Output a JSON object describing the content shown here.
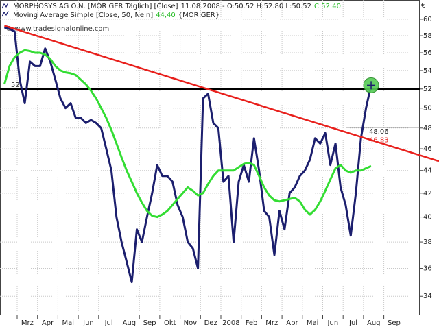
{
  "chart_data": {
    "type": "line",
    "log_scale": true,
    "grid": true,
    "watermark": "© www.tradesignalonline.com",
    "y_unit": "€",
    "ylim": [
      32.7,
      62.4
    ],
    "yticks": [
      34,
      36,
      38,
      40,
      42,
      44,
      46,
      48,
      50,
      52,
      54,
      56,
      58,
      60
    ],
    "categories": [
      null,
      null,
      null,
      "Mrz",
      null,
      null,
      null,
      "Apr",
      null,
      null,
      null,
      "Mai",
      null,
      null,
      null,
      "Jun",
      null,
      null,
      null,
      "Jul",
      null,
      null,
      null,
      "Aug",
      null,
      null,
      null,
      "Sep",
      null,
      null,
      null,
      "Okt",
      null,
      null,
      null,
      "Nov",
      null,
      null,
      null,
      "Dez",
      null,
      null,
      null,
      "2008",
      null,
      null,
      null,
      "Feb",
      null,
      null,
      null,
      "Mrz",
      null,
      null,
      null,
      "Apr",
      null,
      null,
      null,
      "Mai",
      null,
      null,
      null,
      "Jun",
      null,
      null,
      null,
      "Jul",
      null,
      null,
      null,
      "Aug",
      null,
      null,
      null,
      "Sep",
      null,
      null,
      null
    ],
    "series": [
      {
        "name": "MORPHOSYS AG O.N. [MOR GER  Täglich] [Close]",
        "info": "11.08.2008 - O:50.52 H:52.80 L:50.52",
        "last_label": "C:52.40",
        "label_color": "#22bb22",
        "color": "#1c1f6e",
        "values": [
          59,
          58.8,
          58.5,
          53,
          50.5,
          55,
          54.5,
          54.5,
          56.5,
          55,
          53,
          51,
          50,
          50.5,
          49,
          49,
          48.5,
          48.8,
          48.5,
          48,
          46,
          44,
          40,
          38,
          36.5,
          35,
          39,
          38,
          40,
          42,
          44.5,
          43.5,
          43.5,
          43,
          41,
          40,
          38,
          37.5,
          36,
          51,
          51.5,
          48.5,
          48,
          43,
          43.5,
          38,
          43,
          44.5,
          43,
          47,
          44,
          40.5,
          40,
          37,
          40.5,
          39,
          42,
          42.5,
          43.5,
          44,
          45,
          47,
          46.5,
          47.5,
          44.5,
          46.5,
          42.5,
          41,
          38.5,
          42,
          47,
          50,
          52.4,
          null,
          null,
          null,
          null,
          null,
          null
        ]
      },
      {
        "name": "Moving Average Simple [Close, 50, Nein]",
        "last_label": "44,40",
        "suffix": "{MOR GER}",
        "label_color": "#22bb22",
        "color": "#33dd33",
        "values": [
          52.5,
          54.5,
          55.5,
          56,
          56.3,
          56.2,
          56,
          56,
          55.8,
          55.3,
          54.5,
          54,
          53.8,
          53.7,
          53.5,
          53,
          52.5,
          51.8,
          51,
          50,
          49,
          47.8,
          46.5,
          45.2,
          44,
          43,
          42,
          41.2,
          40.5,
          40.1,
          40,
          40.2,
          40.5,
          41,
          41.5,
          42,
          42.5,
          42.2,
          41.8,
          42,
          42.8,
          43.5,
          44,
          44,
          44,
          44,
          44.3,
          44.6,
          44.7,
          44.5,
          43.5,
          42.5,
          41.8,
          41.4,
          41.3,
          41.4,
          41.5,
          41.6,
          41.3,
          40.6,
          40.2,
          40.6,
          41.3,
          42.2,
          43.2,
          44.2,
          44.5,
          44,
          43.8,
          44,
          44,
          44.2,
          44.4,
          null,
          null,
          null,
          null,
          null,
          null
        ]
      }
    ],
    "hlines": [
      {
        "value": 52,
        "color": "#000000"
      },
      {
        "value": 48.06,
        "color": "#777777"
      }
    ],
    "trendline": {
      "color": "#e8201c",
      "start_value": 59.2,
      "end_value": 46.83
    }
  }
}
